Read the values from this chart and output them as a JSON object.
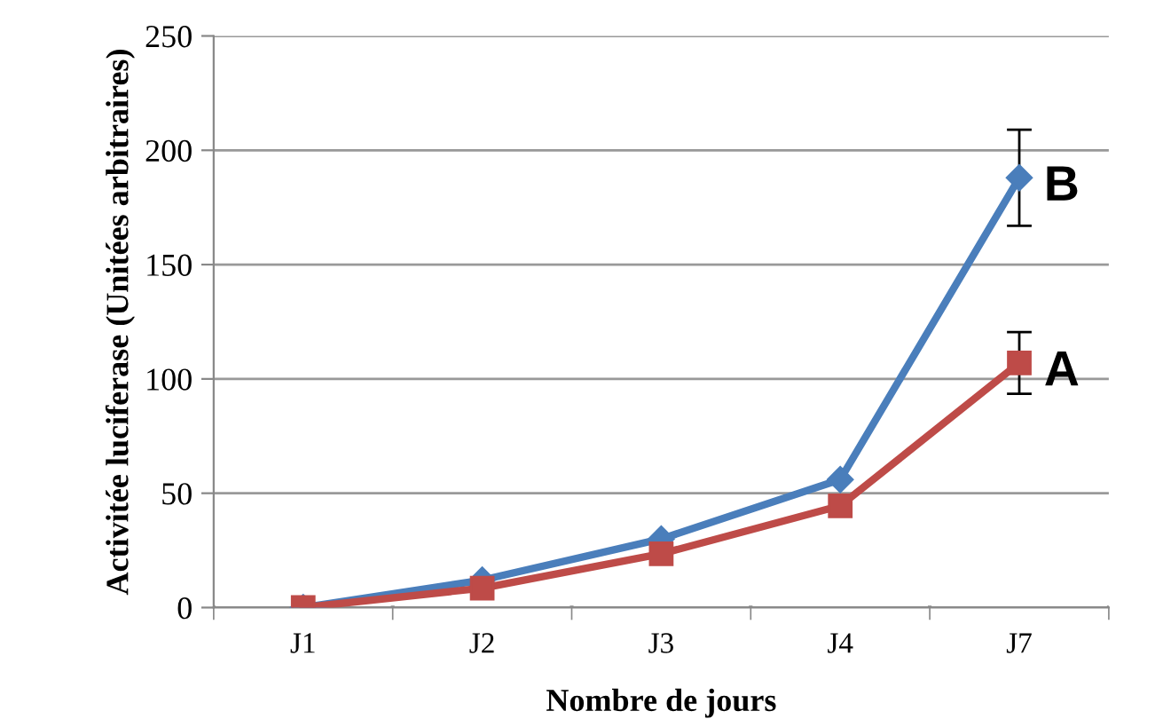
{
  "chart_data": {
    "type": "line",
    "xlabel": "Nombre de jours",
    "ylabel": "Activitée luciferase (Unitées arbitraires)",
    "categories": [
      "J1",
      "J2",
      "J3",
      "J4",
      "J7"
    ],
    "ylim": [
      0,
      250
    ],
    "yticks": [
      0,
      50,
      100,
      150,
      200,
      250
    ],
    "grid": "y",
    "legend": false,
    "series": [
      {
        "name": "B",
        "color": "#4a7ebb",
        "marker": "diamond",
        "values": [
          0,
          12,
          30,
          56,
          188
        ],
        "errors": [
          null,
          null,
          null,
          null,
          21
        ]
      },
      {
        "name": "A",
        "color": "#be4b48",
        "marker": "square",
        "values": [
          0,
          8.5,
          23.5,
          44.5,
          107
        ],
        "errors": [
          null,
          null,
          null,
          null,
          13.5
        ]
      }
    ]
  }
}
